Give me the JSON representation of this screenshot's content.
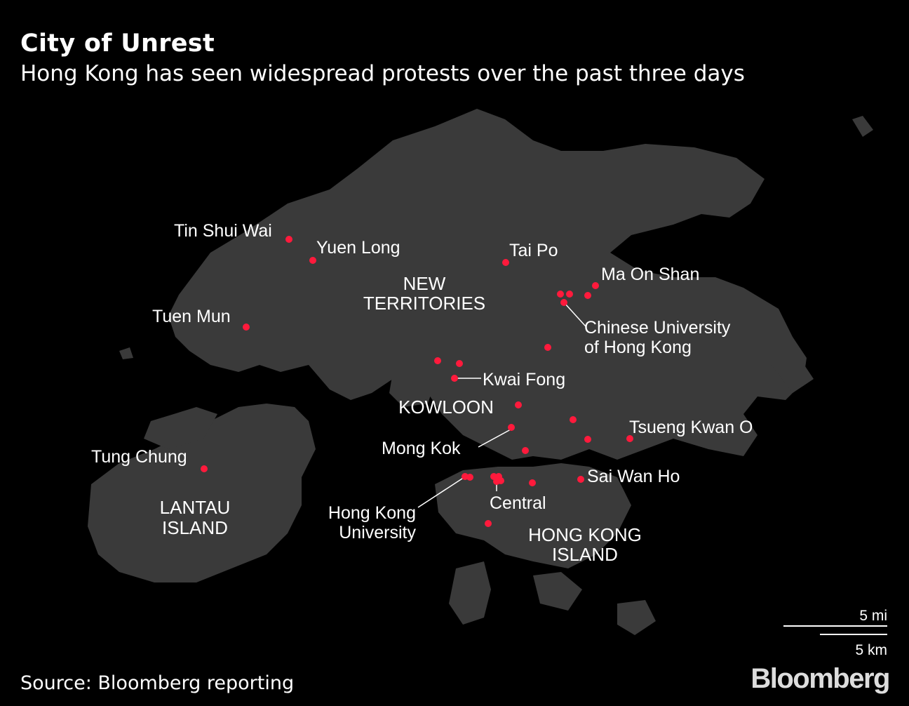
{
  "title": "City of Unrest",
  "subtitle": "Hong Kong has seen widespread protests over the past three days",
  "source": "Source: Bloomberg reporting",
  "brand": "Bloomberg",
  "scale": {
    "miles": "5 mi",
    "km": "5 km"
  },
  "regions": {
    "new_territories": [
      "NEW",
      "TERRITORIES"
    ],
    "kowloon": "KOWLOON",
    "lantau": [
      "LANTAU",
      "ISLAND"
    ],
    "hk_island": [
      "HONG KONG",
      "ISLAND"
    ]
  },
  "places": {
    "tin_shui_wai": "Tin Shui Wai",
    "yuen_long": "Yuen Long",
    "tuen_mun": "Tuen Mun",
    "tai_po": "Tai Po",
    "ma_on_shan": "Ma On Shan",
    "cuhk": [
      "Chinese University",
      "of Hong Kong"
    ],
    "kwai_fong": "Kwai Fong",
    "mong_kok": "Mong Kok",
    "tseung_kwan_o": "Tsueng Kwan O",
    "tung_chung": "Tung Chung",
    "sai_wan_ho": "Sai Wan Ho",
    "central": "Central",
    "hku": [
      "Hong Kong",
      "University"
    ]
  },
  "colors": {
    "land": "#3a3a3a",
    "background": "#000000",
    "protest_dot": "#ff1a3c",
    "text": "#ffffff"
  }
}
